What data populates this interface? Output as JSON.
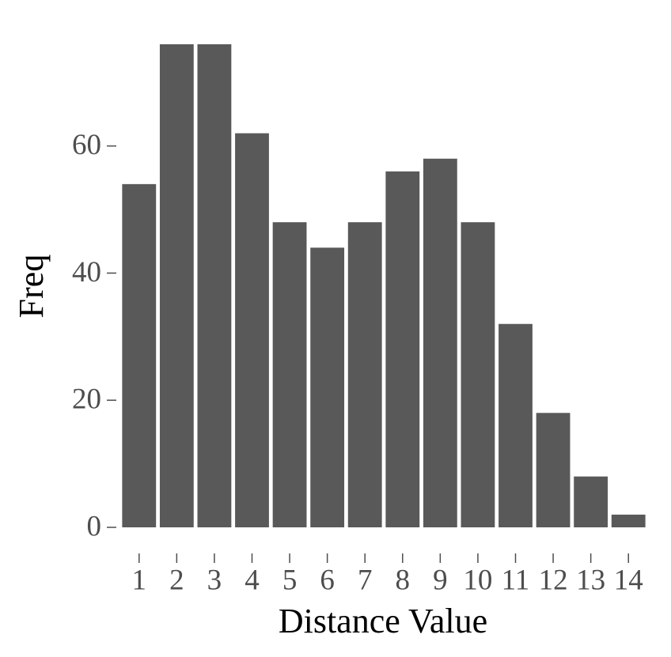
{
  "chart_data": {
    "type": "bar",
    "x_label": "Distance Value",
    "y_label": "Freq",
    "categories": [
      "1",
      "2",
      "3",
      "4",
      "5",
      "6",
      "7",
      "8",
      "9",
      "10",
      "11",
      "12",
      "13",
      "14"
    ],
    "values": [
      54,
      76,
      76,
      62,
      48,
      44,
      48,
      56,
      58,
      48,
      32,
      18,
      8,
      2
    ],
    "color": "#595959",
    "ylim": [
      0,
      76
    ],
    "yticks": [
      0,
      20,
      40,
      60
    ],
    "grid": false
  }
}
